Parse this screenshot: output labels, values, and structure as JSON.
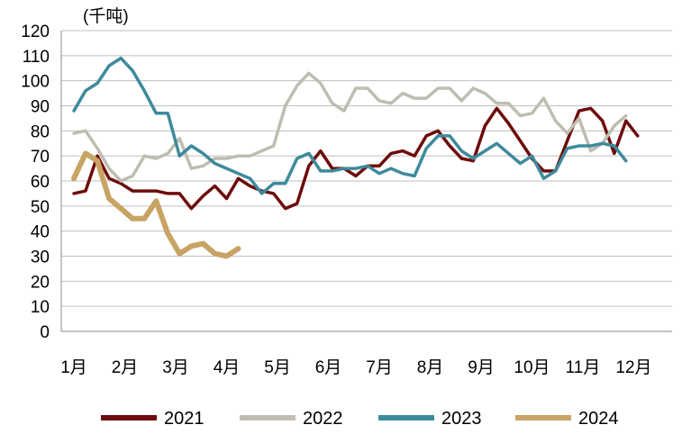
{
  "chart_data": {
    "type": "line",
    "unit_label": "(千吨)",
    "x_tick_labels": [
      "1月",
      "2月",
      "3月",
      "4月",
      "5月",
      "6月",
      "7月",
      "8月",
      "9月",
      "10月",
      "11月",
      "12月"
    ],
    "points_per_year": 52,
    "ylim": [
      0,
      120
    ],
    "y_ticks": [
      0,
      10,
      20,
      30,
      40,
      50,
      60,
      70,
      80,
      90,
      100,
      110,
      120
    ],
    "grid": "horizontal",
    "legend_position": "bottom",
    "series": [
      {
        "name": "2021",
        "color": "#6e0b0b",
        "width": 3.5,
        "values": [
          55,
          56,
          70,
          61,
          59,
          56,
          56,
          56,
          55,
          55,
          49,
          54,
          58,
          53,
          61,
          58,
          56,
          55,
          49,
          51,
          66,
          72,
          65,
          65,
          62,
          66,
          66,
          71,
          72,
          70,
          78,
          80,
          74,
          69,
          68,
          82,
          89,
          83,
          76,
          69,
          64,
          64,
          76,
          88,
          89,
          84,
          71,
          84,
          78
        ]
      },
      {
        "name": "2022",
        "color": "#bfbdb0",
        "width": 3.5,
        "values": [
          79,
          80,
          73,
          65,
          60,
          62,
          70,
          69,
          71,
          77,
          65,
          66,
          69,
          69,
          70,
          70,
          72,
          74,
          90,
          98,
          103,
          99,
          91,
          88,
          97,
          97,
          92,
          91,
          95,
          93,
          93,
          97,
          97,
          92,
          97,
          95,
          91,
          91,
          86,
          87,
          93,
          84,
          79,
          85,
          72,
          75,
          82,
          86
        ]
      },
      {
        "name": "2023",
        "color": "#3d8a9c",
        "width": 3.5,
        "values": [
          88,
          96,
          99,
          106,
          109,
          104,
          96,
          87,
          87,
          70,
          74,
          71,
          67,
          65,
          63,
          61,
          55,
          59,
          59,
          69,
          71,
          64,
          64,
          65,
          65,
          66,
          63,
          65,
          63,
          62,
          73,
          78,
          78,
          72,
          69,
          72,
          75,
          71,
          67,
          70,
          61,
          64,
          73,
          74,
          74,
          75,
          74,
          68
        ]
      },
      {
        "name": "2024",
        "color": "#c8a464",
        "width": 6,
        "values": [
          61,
          71,
          68,
          53,
          49,
          45,
          45,
          52,
          39,
          31,
          34,
          35,
          31,
          30,
          33
        ]
      }
    ]
  }
}
